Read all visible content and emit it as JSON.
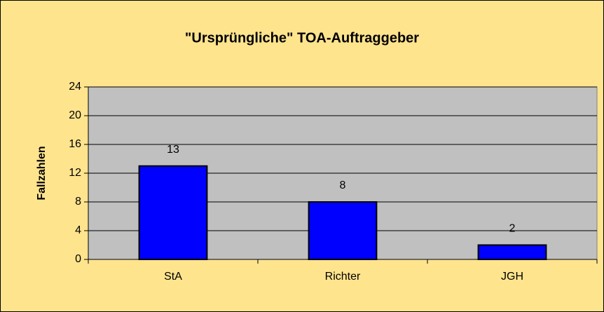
{
  "chart_data": {
    "type": "bar",
    "title": "\"Ursprüngliche\" TOA-Auftraggeber",
    "y_label": "Fallzahlen",
    "categories": [
      "StA",
      "Richter",
      "JGH"
    ],
    "values": [
      13,
      8,
      2
    ],
    "color": "#0000ff",
    "ylim": [
      0,
      24
    ],
    "yticks": [
      0,
      4,
      8,
      12,
      16,
      20,
      24
    ],
    "grid": true
  }
}
